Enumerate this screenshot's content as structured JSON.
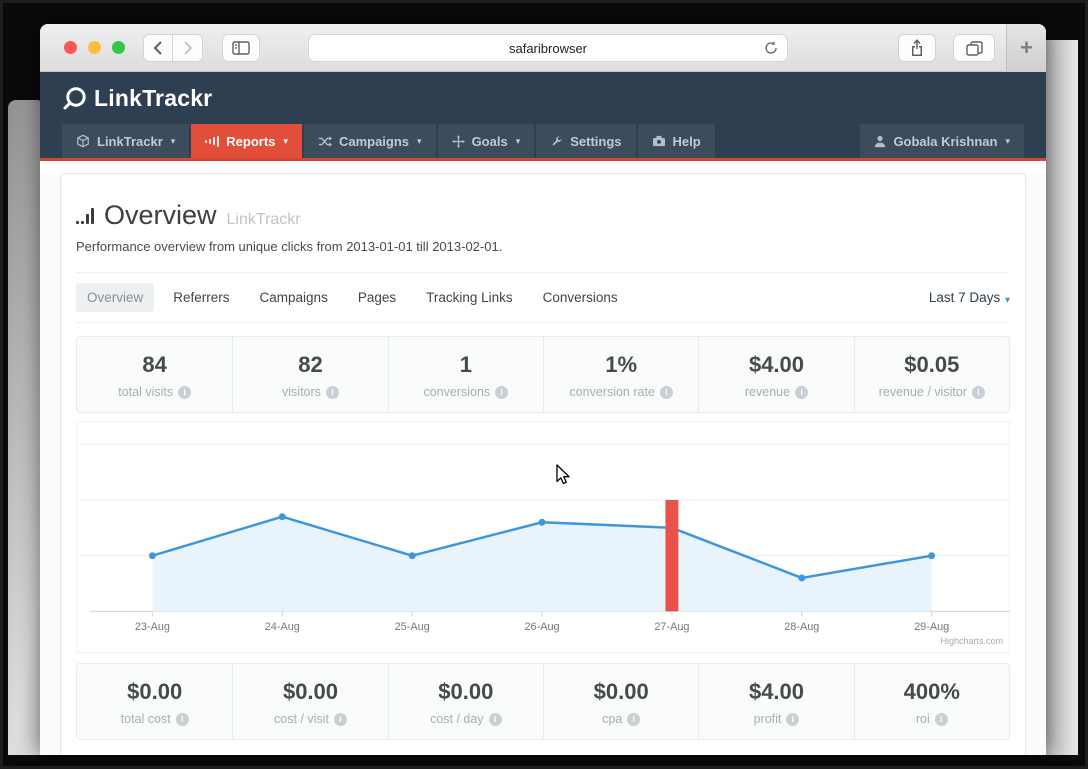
{
  "browser": {
    "url": "safaribrowser",
    "new_tab_label": "+"
  },
  "site": {
    "brand": "LinkTrackr"
  },
  "nav": {
    "items": [
      {
        "label": "LinkTrackr",
        "icon": "cube",
        "caret": true
      },
      {
        "label": "Reports",
        "icon": "bar-chart",
        "caret": true,
        "active": true
      },
      {
        "label": "Campaigns",
        "icon": "shuffle",
        "caret": true
      },
      {
        "label": "Goals",
        "icon": "compass",
        "caret": true
      },
      {
        "label": "Settings",
        "icon": "wrench",
        "caret": false
      },
      {
        "label": "Help",
        "icon": "camera",
        "caret": false
      }
    ],
    "user": "Gobala Krishnan"
  },
  "page": {
    "title": "Overview",
    "title_suffix": "LinkTrackr",
    "subtitle": "Performance overview from unique clicks from 2013-01-01 till 2013-02-01."
  },
  "tabs": {
    "items": [
      "Overview",
      "Referrers",
      "Campaigns",
      "Pages",
      "Tracking Links",
      "Conversions"
    ],
    "active": "Overview",
    "range_selector": "Last 7 Days"
  },
  "stats_top": [
    {
      "value": "84",
      "label": "total visits"
    },
    {
      "value": "82",
      "label": "visitors"
    },
    {
      "value": "1",
      "label": "conversions"
    },
    {
      "value": "1%",
      "label": "conversion rate"
    },
    {
      "value": "$4.00",
      "label": "revenue"
    },
    {
      "value": "$0.05",
      "label": "revenue / visitor"
    }
  ],
  "stats_bottom": [
    {
      "value": "$0.00",
      "label": "total cost"
    },
    {
      "value": "$0.00",
      "label": "cost / visit"
    },
    {
      "value": "$0.00",
      "label": "cost / day"
    },
    {
      "value": "$0.00",
      "label": "cpa"
    },
    {
      "value": "$4.00",
      "label": "profit"
    },
    {
      "value": "400%",
      "label": "roi"
    }
  ],
  "chart_data": {
    "type": "area",
    "x": [
      "23-Aug",
      "24-Aug",
      "25-Aug",
      "26-Aug",
      "27-Aug",
      "28-Aug",
      "29-Aug"
    ],
    "series": [
      {
        "name": "series-1",
        "type": "area-line",
        "values": [
          10,
          17,
          10,
          16,
          15,
          6,
          10
        ]
      },
      {
        "name": "series-2",
        "type": "column",
        "values": [
          0,
          0,
          0,
          0,
          1,
          0,
          0
        ]
      }
    ],
    "ylim": [
      0,
      34
    ],
    "bar_ylim": [
      0,
      1.7
    ],
    "gridlines": [
      10,
      20,
      30
    ],
    "legend": "none",
    "grid": "on",
    "credit": "Highcharts.com",
    "colors": {
      "line": "#3d96d9",
      "area": "#e9f3fb",
      "bar": "#e8524a",
      "grid": "#e8ecee",
      "axis": "#ccd6dc",
      "tick_text": "#6f7a82"
    }
  }
}
